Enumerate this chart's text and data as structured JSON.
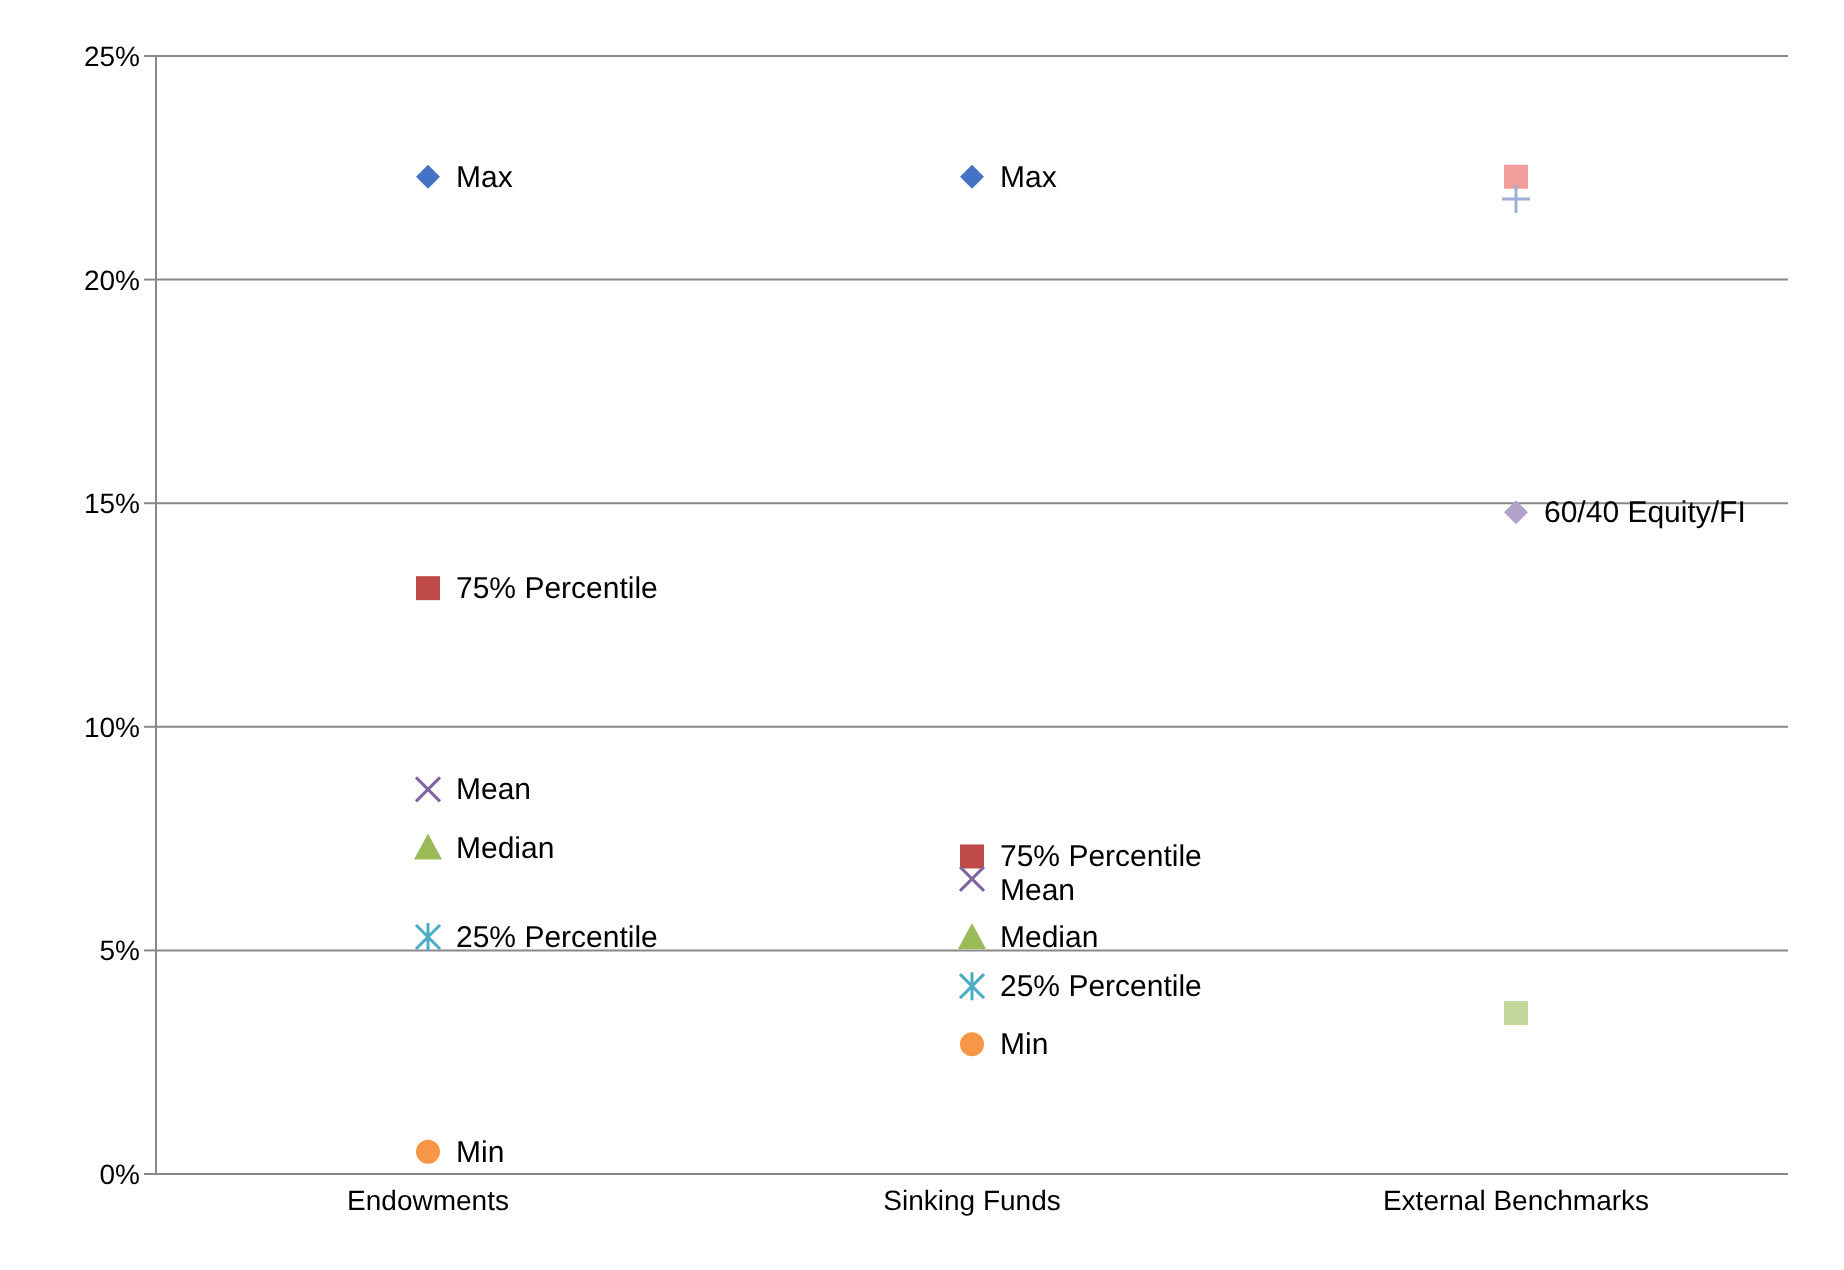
{
  "chart_data": {
    "type": "scatter",
    "categories": [
      "Endowments",
      "Sinking Funds",
      "External Benchmarks"
    ],
    "series": [
      {
        "name": "Max",
        "color": "#4472c4",
        "marker": "diamond",
        "values": [
          22.3,
          22.3,
          null
        ]
      },
      {
        "name": "75% Percentile",
        "color": "#be4b48",
        "marker": "square",
        "values": [
          13.1,
          7.1,
          null
        ]
      },
      {
        "name": "Mean",
        "color": "#8064a2",
        "marker": "cross",
        "values": [
          8.6,
          6.6,
          null
        ]
      },
      {
        "name": "Median",
        "color": "#9bbb59",
        "marker": "triangle",
        "values": [
          7.3,
          5.3,
          null
        ]
      },
      {
        "name": "25% Percentile",
        "color": "#4bacc6",
        "marker": "cross",
        "values": [
          5.3,
          4.2,
          null
        ]
      },
      {
        "name": "Min",
        "color": "#f79646",
        "marker": "circle",
        "values": [
          0.5,
          2.9,
          null
        ]
      },
      {
        "color": "#f19d9b",
        "marker": "square",
        "values": [
          null,
          null,
          22.3
        ]
      },
      {
        "color": "#9eb0d6",
        "marker": "plus",
        "values": [
          null,
          null,
          21.8
        ]
      },
      {
        "name": "60/40 Equity/FI",
        "color": "#b3a2c7",
        "marker": "diamond",
        "values": [
          null,
          null,
          14.8
        ]
      },
      {
        "color": "#c3d69b",
        "marker": "square",
        "values": [
          null,
          null,
          3.6
        ]
      }
    ],
    "ylim": [
      0,
      25
    ],
    "yticks": [
      {
        "value": 0,
        "label": "0%"
      },
      {
        "value": 5,
        "label": "5%"
      },
      {
        "value": 10,
        "label": "10%"
      },
      {
        "value": 15,
        "label": "15%"
      },
      {
        "value": 20,
        "label": "20%"
      },
      {
        "value": 25,
        "label": "25%"
      }
    ],
    "grid": "y",
    "legend": false
  }
}
